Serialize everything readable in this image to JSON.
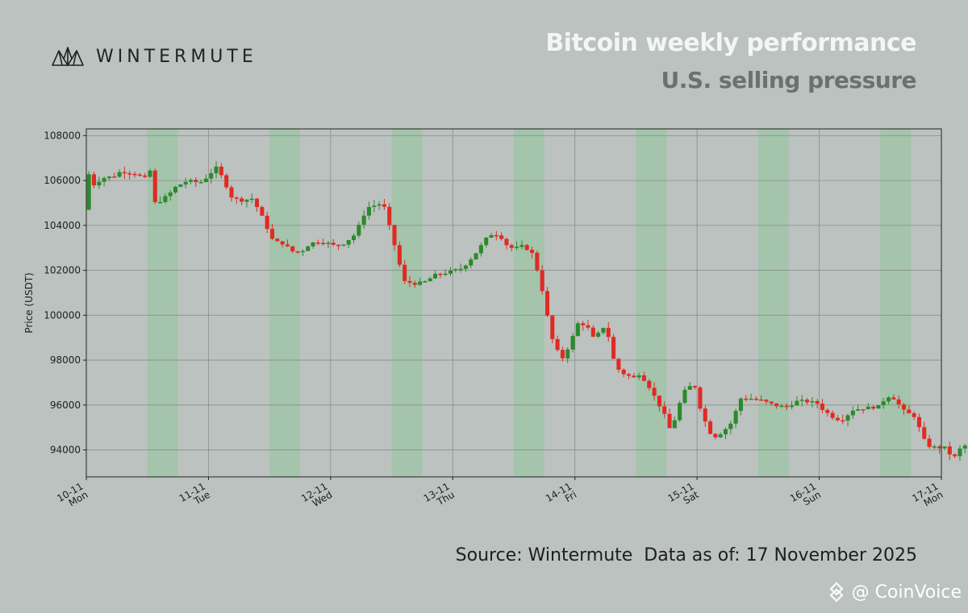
{
  "brand": {
    "name": "WINTERMUTE",
    "logo_icon": "wintermute-logo-icon"
  },
  "header": {
    "title": "Bitcoin weekly performance",
    "subtitle": "U.S. selling pressure"
  },
  "footer": {
    "source": "Source: Wintermute  Data as of: 17 November 2025"
  },
  "watermark": {
    "text": "@ CoinVoice",
    "icon": "coinvoice-diamond-icon"
  },
  "colors": {
    "background": "#bcc2bf",
    "up": "#2b8a2b",
    "down": "#e02a24",
    "us_session_shade": "#8fc79a",
    "grid": "#8a8e8c"
  },
  "chart_data": {
    "type": "candlestick",
    "title": "",
    "xlabel": "",
    "ylabel": "Price (USDT)",
    "ylim": [
      92800,
      108300
    ],
    "yticks": [
      94000,
      96000,
      98000,
      100000,
      102000,
      104000,
      106000,
      108000
    ],
    "xlim": [
      0,
      7
    ],
    "xticks": [
      {
        "x": 0,
        "date": "10-11",
        "day": "Mon"
      },
      {
        "x": 1,
        "date": "11-11",
        "day": "Tue"
      },
      {
        "x": 2,
        "date": "12-11",
        "day": "Wed"
      },
      {
        "x": 3,
        "date": "13-11",
        "day": "Thu"
      },
      {
        "x": 4,
        "date": "14-11",
        "day": "Fri"
      },
      {
        "x": 5,
        "date": "15-11",
        "day": "Sat"
      },
      {
        "x": 6,
        "date": "16-11",
        "day": "Sun"
      },
      {
        "x": 7,
        "date": "17-11",
        "day": "Mon"
      }
    ],
    "grid": true,
    "shaded_sessions": [
      [
        0.5,
        0.75
      ],
      [
        1.5,
        1.75
      ],
      [
        2.5,
        2.75
      ],
      [
        3.5,
        3.75
      ],
      [
        4.5,
        4.75
      ],
      [
        5.5,
        5.75
      ],
      [
        6.5,
        6.75
      ]
    ],
    "candle_interval_days": 0.0417,
    "price_keypoints": [
      [
        0.0,
        104700
      ],
      [
        0.04,
        106300
      ],
      [
        0.08,
        105800
      ],
      [
        0.15,
        106100
      ],
      [
        0.25,
        106200
      ],
      [
        0.3,
        106400
      ],
      [
        0.42,
        106300
      ],
      [
        0.5,
        106100
      ],
      [
        0.55,
        106500
      ],
      [
        0.58,
        105000
      ],
      [
        0.63,
        105100
      ],
      [
        0.7,
        105400
      ],
      [
        0.75,
        105700
      ],
      [
        0.85,
        106000
      ],
      [
        0.95,
        105900
      ],
      [
        1.02,
        106200
      ],
      [
        1.08,
        106600
      ],
      [
        1.15,
        106000
      ],
      [
        1.2,
        105300
      ],
      [
        1.28,
        105100
      ],
      [
        1.38,
        105200
      ],
      [
        1.45,
        104500
      ],
      [
        1.55,
        103300
      ],
      [
        1.63,
        103200
      ],
      [
        1.72,
        102800
      ],
      [
        1.8,
        102900
      ],
      [
        1.85,
        103200
      ],
      [
        1.95,
        103300
      ],
      [
        2.05,
        103100
      ],
      [
        2.13,
        103200
      ],
      [
        2.22,
        103600
      ],
      [
        2.32,
        104800
      ],
      [
        2.45,
        105000
      ],
      [
        2.55,
        103000
      ],
      [
        2.62,
        101500
      ],
      [
        2.72,
        101400
      ],
      [
        2.8,
        101500
      ],
      [
        2.88,
        101800
      ],
      [
        2.98,
        101900
      ],
      [
        3.1,
        102100
      ],
      [
        3.2,
        102700
      ],
      [
        3.32,
        103600
      ],
      [
        3.4,
        103600
      ],
      [
        3.48,
        103000
      ],
      [
        3.55,
        103000
      ],
      [
        3.6,
        103100
      ],
      [
        3.68,
        102700
      ],
      [
        3.75,
        101200
      ],
      [
        3.8,
        99800
      ],
      [
        3.85,
        98600
      ],
      [
        3.92,
        98100
      ],
      [
        3.96,
        98500
      ],
      [
        4.0,
        99000
      ],
      [
        4.05,
        99700
      ],
      [
        4.12,
        99500
      ],
      [
        4.18,
        98900
      ],
      [
        4.25,
        99500
      ],
      [
        4.3,
        99000
      ],
      [
        4.35,
        97700
      ],
      [
        4.42,
        97400
      ],
      [
        4.5,
        97200
      ],
      [
        4.55,
        97400
      ],
      [
        4.62,
        96900
      ],
      [
        4.68,
        96300
      ],
      [
        4.75,
        95600
      ],
      [
        4.8,
        94900
      ],
      [
        4.85,
        95500
      ],
      [
        4.9,
        96500
      ],
      [
        4.95,
        96800
      ],
      [
        5.0,
        96900
      ],
      [
        5.05,
        95800
      ],
      [
        5.12,
        94800
      ],
      [
        5.17,
        94600
      ],
      [
        5.23,
        94800
      ],
      [
        5.3,
        95200
      ],
      [
        5.38,
        96300
      ],
      [
        5.45,
        96300
      ],
      [
        5.55,
        96200
      ],
      [
        5.65,
        96000
      ],
      [
        5.75,
        95900
      ],
      [
        5.85,
        96200
      ],
      [
        6.0,
        96100
      ],
      [
        6.05,
        95800
      ],
      [
        6.12,
        95500
      ],
      [
        6.2,
        95300
      ],
      [
        6.3,
        95800
      ],
      [
        6.45,
        95900
      ],
      [
        6.5,
        95900
      ],
      [
        6.58,
        96400
      ],
      [
        6.63,
        96300
      ],
      [
        6.72,
        95700
      ],
      [
        6.8,
        95500
      ],
      [
        6.86,
        94700
      ],
      [
        6.9,
        94200
      ],
      [
        6.98,
        94100
      ],
      [
        7.05,
        94100
      ],
      [
        7.12,
        93600
      ],
      [
        7.18,
        94100
      ],
      [
        7.22,
        94200
      ],
      [
        7.26,
        94300
      ],
      [
        7.28,
        95200
      ]
    ]
  }
}
